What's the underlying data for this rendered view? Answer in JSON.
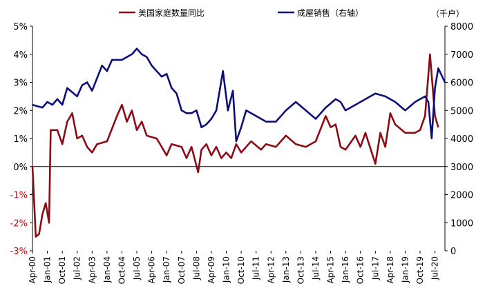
{
  "chart_data": {
    "type": "line",
    "legend_position": "top",
    "grid": false,
    "y_left": {
      "ticks": [
        "5%",
        "4%",
        "3%",
        "2%",
        "1%",
        "0%",
        "-1%",
        "-2%",
        "-3%"
      ],
      "values": [
        5,
        4,
        3,
        2,
        1,
        0,
        -1,
        -2,
        -3
      ],
      "range": [
        -3,
        5
      ]
    },
    "y_right": {
      "unit_label": "（千户）",
      "ticks": [
        "8000",
        "7000",
        "6000",
        "5000",
        "4000",
        "3000",
        "2000",
        "1000",
        "0"
      ],
      "values": [
        8000,
        7000,
        6000,
        5000,
        4000,
        3000,
        2000,
        1000,
        0
      ],
      "range": [
        0,
        8000
      ]
    },
    "x_ticks": [
      "Apr-00",
      "Jan-01",
      "Oct-01",
      "Jul-02",
      "Apr-03",
      "Jan-04",
      "Oct-04",
      "Jul-05",
      "Apr-06",
      "Jan-07",
      "Oct-07",
      "Jul-08",
      "Apr-09",
      "Jan-10",
      "Oct-10",
      "Jul-11",
      "Apr-12",
      "Jan-13",
      "Oct-13",
      "Jul-14",
      "Apr-15",
      "Jan-16",
      "Oct-16",
      "Jul-17",
      "Apr-18",
      "Jan-19",
      "Oct-19",
      "Jul-20"
    ],
    "series": [
      {
        "name": "美国家庭数量同比",
        "axis": "left",
        "color": "#8B0A14",
        "unit": "%",
        "points": [
          [
            "Apr-00",
            0.0
          ],
          [
            "Jun-00",
            -2.5
          ],
          [
            "Aug-00",
            -2.4
          ],
          [
            "Oct-00",
            -1.7
          ],
          [
            "Dec-00",
            -1.3
          ],
          [
            "Feb-01",
            -2.0
          ],
          [
            "Mar-01",
            1.3
          ],
          [
            "Jul-01",
            1.3
          ],
          [
            "Oct-01",
            0.8
          ],
          [
            "Jan-02",
            1.6
          ],
          [
            "Apr-02",
            1.9
          ],
          [
            "Jul-02",
            1.0
          ],
          [
            "Oct-02",
            1.1
          ],
          [
            "Jan-03",
            0.7
          ],
          [
            "Apr-03",
            0.5
          ],
          [
            "Jul-03",
            0.8
          ],
          [
            "Jan-04",
            0.9
          ],
          [
            "Jul-04",
            1.8
          ],
          [
            "Oct-04",
            2.2
          ],
          [
            "Jan-05",
            1.6
          ],
          [
            "Apr-05",
            2.0
          ],
          [
            "Jul-05",
            1.3
          ],
          [
            "Oct-05",
            1.6
          ],
          [
            "Jan-06",
            1.1
          ],
          [
            "Jul-06",
            1.0
          ],
          [
            "Jan-07",
            0.4
          ],
          [
            "Apr-07",
            0.8
          ],
          [
            "Oct-07",
            0.7
          ],
          [
            "Jan-08",
            0.3
          ],
          [
            "Apr-08",
            0.7
          ],
          [
            "Aug-08",
            -0.2
          ],
          [
            "Oct-08",
            0.6
          ],
          [
            "Jan-09",
            0.8
          ],
          [
            "Apr-09",
            0.4
          ],
          [
            "Jul-09",
            0.7
          ],
          [
            "Oct-09",
            0.3
          ],
          [
            "Jan-10",
            0.5
          ],
          [
            "Apr-10",
            0.3
          ],
          [
            "Jul-10",
            0.8
          ],
          [
            "Oct-10",
            0.5
          ],
          [
            "Jan-11",
            0.7
          ],
          [
            "Apr-11",
            0.9
          ],
          [
            "Oct-11",
            0.6
          ],
          [
            "Jan-12",
            0.8
          ],
          [
            "Jul-12",
            0.7
          ],
          [
            "Jan-13",
            1.1
          ],
          [
            "Jul-13",
            0.8
          ],
          [
            "Jan-14",
            0.7
          ],
          [
            "Jul-14",
            0.9
          ],
          [
            "Jan-15",
            1.8
          ],
          [
            "Apr-15",
            1.4
          ],
          [
            "Jul-15",
            1.5
          ],
          [
            "Oct-15",
            0.7
          ],
          [
            "Jan-16",
            0.6
          ],
          [
            "Jul-16",
            1.1
          ],
          [
            "Oct-16",
            0.7
          ],
          [
            "Jan-17",
            1.2
          ],
          [
            "Jul-17",
            0.1
          ],
          [
            "Oct-17",
            1.2
          ],
          [
            "Jan-18",
            0.7
          ],
          [
            "Apr-18",
            1.9
          ],
          [
            "Jul-18",
            1.5
          ],
          [
            "Jan-19",
            1.2
          ],
          [
            "Jul-19",
            1.2
          ],
          [
            "Oct-19",
            1.3
          ],
          [
            "Jan-20",
            1.8
          ],
          [
            "Apr-20",
            4.0
          ],
          [
            "Jul-20",
            1.8
          ],
          [
            "Sep-20",
            1.4
          ]
        ]
      },
      {
        "name": "成屋销售（右轴）",
        "axis": "right",
        "color": "#0B0D7A",
        "unit": "千户",
        "points": [
          [
            "Apr-00",
            5200
          ],
          [
            "Oct-00",
            5100
          ],
          [
            "Jan-01",
            5300
          ],
          [
            "Apr-01",
            5200
          ],
          [
            "Jul-01",
            5400
          ],
          [
            "Oct-01",
            5200
          ],
          [
            "Jan-02",
            5800
          ],
          [
            "Jul-02",
            5500
          ],
          [
            "Oct-02",
            5900
          ],
          [
            "Jan-03",
            6000
          ],
          [
            "Apr-03",
            5700
          ],
          [
            "Oct-03",
            6600
          ],
          [
            "Jan-04",
            6400
          ],
          [
            "Apr-04",
            6800
          ],
          [
            "Oct-04",
            6800
          ],
          [
            "Jan-05",
            6900
          ],
          [
            "Apr-05",
            7000
          ],
          [
            "Jul-05",
            7200
          ],
          [
            "Oct-05",
            7000
          ],
          [
            "Jan-06",
            6900
          ],
          [
            "Apr-06",
            6600
          ],
          [
            "Jul-06",
            6400
          ],
          [
            "Oct-06",
            6200
          ],
          [
            "Jan-07",
            6300
          ],
          [
            "Apr-07",
            5800
          ],
          [
            "Jul-07",
            5600
          ],
          [
            "Oct-07",
            5000
          ],
          [
            "Jan-08",
            4900
          ],
          [
            "Apr-08",
            4900
          ],
          [
            "Jul-08",
            5000
          ],
          [
            "Oct-08",
            4400
          ],
          [
            "Jan-09",
            4500
          ],
          [
            "Apr-09",
            4700
          ],
          [
            "Jul-09",
            5000
          ],
          [
            "Nov-09",
            6400
          ],
          [
            "Feb-10",
            5000
          ],
          [
            "May-10",
            5700
          ],
          [
            "Jul-10",
            3900
          ],
          [
            "Oct-10",
            4400
          ],
          [
            "Jan-11",
            5000
          ],
          [
            "Jul-11",
            4800
          ],
          [
            "Jan-12",
            4600
          ],
          [
            "Jul-12",
            4600
          ],
          [
            "Jan-13",
            5000
          ],
          [
            "Jul-13",
            5300
          ],
          [
            "Jan-14",
            5000
          ],
          [
            "Jul-14",
            4700
          ],
          [
            "Jan-15",
            5100
          ],
          [
            "Jul-15",
            5400
          ],
          [
            "Oct-15",
            5300
          ],
          [
            "Jan-16",
            5000
          ],
          [
            "Jul-16",
            5200
          ],
          [
            "Jan-17",
            5400
          ],
          [
            "Jul-17",
            5600
          ],
          [
            "Jan-18",
            5500
          ],
          [
            "Jul-18",
            5300
          ],
          [
            "Jan-19",
            5000
          ],
          [
            "Jul-19",
            5300
          ],
          [
            "Jan-20",
            5500
          ],
          [
            "Mar-20",
            5300
          ],
          [
            "May-20",
            4000
          ],
          [
            "Jul-20",
            5800
          ],
          [
            "Sep-20",
            6500
          ],
          [
            "Jan-21",
            6000
          ]
        ]
      }
    ]
  }
}
